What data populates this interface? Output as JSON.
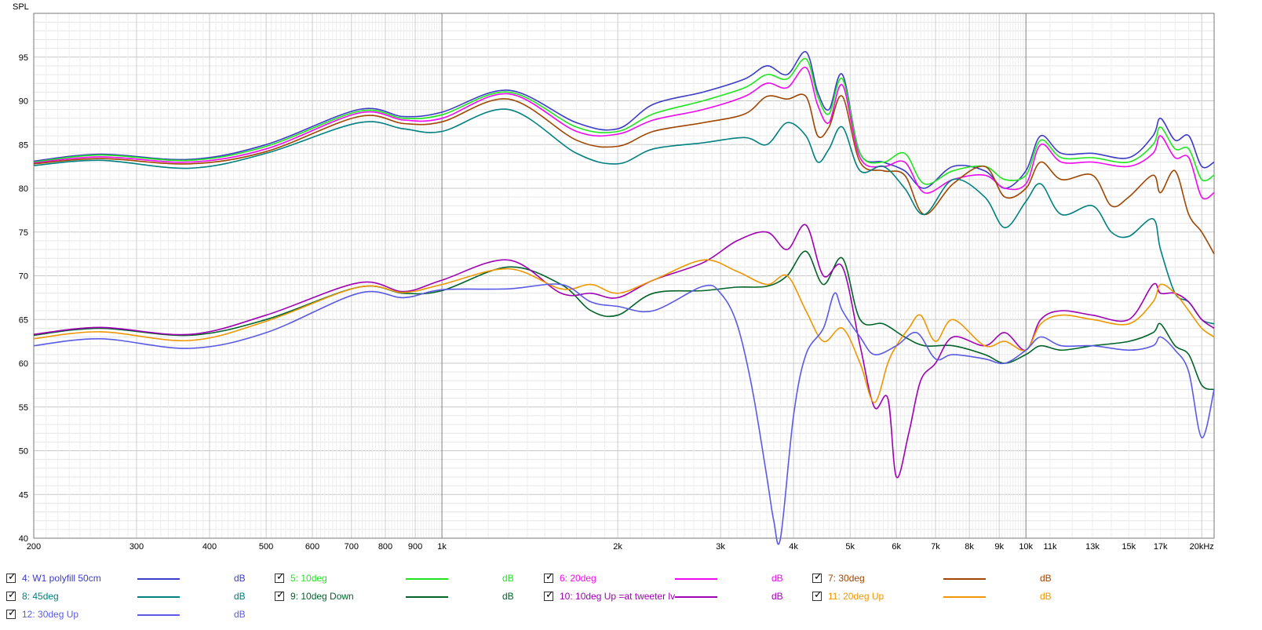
{
  "chart_data": {
    "type": "line",
    "ylabel": "SPL",
    "x_scale": "log",
    "xlim": [
      200,
      21000
    ],
    "ylim": [
      40,
      100
    ],
    "y_ticks": [
      40,
      45,
      50,
      55,
      60,
      65,
      70,
      75,
      80,
      85,
      90,
      95
    ],
    "x_ticks": [
      {
        "value": 200,
        "label": "200"
      },
      {
        "value": 300,
        "label": "300"
      },
      {
        "value": 400,
        "label": "400"
      },
      {
        "value": 500,
        "label": "500"
      },
      {
        "value": 600,
        "label": "600"
      },
      {
        "value": 700,
        "label": "700"
      },
      {
        "value": 800,
        "label": "800"
      },
      {
        "value": 900,
        "label": "900"
      },
      {
        "value": 1000,
        "label": "1k"
      },
      {
        "value": 2000,
        "label": "2k"
      },
      {
        "value": 3000,
        "label": "3k"
      },
      {
        "value": 4000,
        "label": "4k"
      },
      {
        "value": 5000,
        "label": "5k"
      },
      {
        "value": 6000,
        "label": "6k"
      },
      {
        "value": 7000,
        "label": "7k"
      },
      {
        "value": 8000,
        "label": "8k"
      },
      {
        "value": 9000,
        "label": "9k"
      },
      {
        "value": 10000,
        "label": "10k"
      },
      {
        "value": 11000,
        "label": "11k"
      },
      {
        "value": 13000,
        "label": "13k"
      },
      {
        "value": 15000,
        "label": "15k"
      },
      {
        "value": 17000,
        "label": "17k"
      },
      {
        "value": 20000,
        "label": "20kHz"
      }
    ],
    "grid": true,
    "legend_position": "bottom",
    "series": [
      {
        "name": "4: W1 polyfill 50cm",
        "unit": "dB",
        "color": "#3c3cc8",
        "x": [
          200,
          260,
          370,
          500,
          720,
          860,
          1000,
          1300,
          1700,
          2000,
          2300,
          2800,
          3300,
          3600,
          3900,
          4200,
          4400,
          4600,
          4850,
          5200,
          5700,
          6200,
          6700,
          7500,
          8500,
          9200,
          10000,
          10600,
          11500,
          13000,
          15000,
          16500,
          17000,
          18000,
          19000,
          20000,
          21000
        ],
        "y": [
          83.1,
          83.9,
          83.3,
          85,
          89,
          88.2,
          88.7,
          91.2,
          87.5,
          86.8,
          89.6,
          91,
          92.5,
          94,
          93,
          95.6,
          91,
          89,
          93,
          84,
          83,
          82,
          80,
          82.5,
          82,
          80,
          82,
          86,
          84,
          84,
          83.5,
          86,
          88,
          85.5,
          86,
          82.5,
          83
        ]
      },
      {
        "name": "5: 10deg",
        "unit": "dB",
        "color": "#1ee61e",
        "x": [
          200,
          260,
          370,
          500,
          720,
          860,
          1000,
          1300,
          1700,
          2000,
          2300,
          2800,
          3300,
          3600,
          3900,
          4200,
          4400,
          4600,
          4850,
          5200,
          5700,
          6200,
          6700,
          7500,
          8500,
          9200,
          10000,
          10600,
          11500,
          13000,
          15000,
          16500,
          17000,
          18000,
          19000,
          20000,
          21000
        ],
        "y": [
          83.0,
          83.8,
          83.2,
          84.8,
          88.8,
          88.0,
          88.4,
          91.0,
          87.0,
          86.5,
          88.5,
          90,
          91.5,
          93,
          92.5,
          94.8,
          90.5,
          88.5,
          92.5,
          84,
          83,
          84,
          80.5,
          82,
          82.5,
          81,
          81.5,
          85.5,
          83.5,
          83.5,
          83,
          85,
          87,
          84.5,
          84.5,
          81,
          81.5
        ]
      },
      {
        "name": "6: 20deg",
        "unit": "dB",
        "color": "#f00af0",
        "x": [
          200,
          260,
          370,
          500,
          720,
          860,
          1000,
          1300,
          1700,
          2000,
          2300,
          2800,
          3300,
          3600,
          3900,
          4200,
          4400,
          4600,
          4850,
          5200,
          5700,
          6200,
          6700,
          7500,
          8500,
          9200,
          10000,
          10600,
          11500,
          13000,
          15000,
          16500,
          17000,
          18000,
          19000,
          20000,
          21000
        ],
        "y": [
          82.9,
          83.6,
          83.0,
          84.5,
          88.6,
          87.8,
          88.0,
          90.8,
          86.5,
          86.2,
          87.8,
          89,
          90.5,
          92,
          91.5,
          93.8,
          89.5,
          87.5,
          91.8,
          83.5,
          82.5,
          83,
          79.5,
          81,
          81.5,
          80,
          80.5,
          85,
          83,
          83,
          82.5,
          84,
          86,
          83.5,
          83.5,
          79,
          79.5
        ]
      },
      {
        "name": "7: 30deg",
        "unit": "dB",
        "color": "#a04600",
        "x": [
          200,
          260,
          370,
          500,
          720,
          860,
          1000,
          1300,
          1700,
          2000,
          2300,
          2800,
          3300,
          3600,
          3900,
          4200,
          4400,
          4600,
          4850,
          5200,
          5700,
          6200,
          6700,
          7500,
          8500,
          9200,
          10000,
          10600,
          11500,
          13000,
          14000,
          15000,
          16500,
          17000,
          18000,
          19000,
          20000,
          21000
        ],
        "y": [
          82.8,
          83.4,
          82.8,
          84.2,
          88.2,
          87.4,
          87.6,
          90.2,
          85.5,
          84.8,
          86.5,
          87.5,
          88.5,
          90.5,
          90.2,
          90.5,
          86,
          87,
          90.5,
          83,
          82,
          81.5,
          77,
          80.5,
          82.5,
          79,
          80,
          83,
          81,
          81.5,
          78,
          79,
          81.5,
          79.5,
          82,
          77,
          75,
          72.5
        ]
      },
      {
        "name": "8: 45deg",
        "unit": "dB",
        "color": "#008080",
        "x": [
          200,
          260,
          370,
          500,
          720,
          860,
          1000,
          1300,
          1700,
          2000,
          2300,
          2800,
          3300,
          3600,
          3900,
          4200,
          4400,
          4600,
          4850,
          5200,
          5700,
          6200,
          6700,
          7500,
          8500,
          9200,
          10000,
          10600,
          11500,
          13000,
          14000,
          15000,
          16500,
          17000,
          18000,
          19000,
          20000,
          21000
        ],
        "y": [
          82.6,
          83.2,
          82.3,
          84,
          87.5,
          86.8,
          86.5,
          89,
          84,
          82.8,
          84.5,
          85.2,
          85.8,
          85,
          87.5,
          86,
          83,
          84.5,
          87,
          82,
          82.5,
          80,
          77,
          81,
          79,
          75.5,
          78.5,
          80.5,
          77,
          78,
          75,
          74.5,
          76.5,
          73,
          68,
          67,
          65,
          64.5
        ]
      },
      {
        "name": "9: 10deg Down",
        "unit": "dB",
        "color": "#006428",
        "x": [
          200,
          260,
          370,
          500,
          720,
          860,
          1000,
          1300,
          1600,
          1800,
          2000,
          2300,
          2800,
          3200,
          3600,
          3900,
          4200,
          4500,
          4850,
          5200,
          5700,
          6200,
          6700,
          7500,
          8500,
          9200,
          10000,
          10600,
          11500,
          13000,
          15000,
          16500,
          17000,
          18000,
          19000,
          20000,
          21000
        ],
        "y": [
          63.2,
          64,
          63.2,
          65,
          68.7,
          68,
          68.3,
          71,
          69,
          66,
          65.5,
          68,
          68.3,
          68.7,
          68.8,
          70,
          72.8,
          69,
          72,
          65,
          64.5,
          63,
          62,
          62,
          61,
          60,
          61,
          62,
          61.5,
          62,
          62.5,
          63.5,
          64.5,
          62,
          61,
          57.5,
          57
        ]
      },
      {
        "name": "10: 10deg Up =at tweeter lv",
        "unit": "dB",
        "color": "#a000b4",
        "x": [
          200,
          260,
          370,
          500,
          720,
          860,
          1000,
          1300,
          1600,
          1800,
          2000,
          2300,
          2800,
          3200,
          3600,
          3900,
          4200,
          4500,
          4850,
          5200,
          5500,
          5800,
          6000,
          6300,
          6600,
          7000,
          7500,
          8500,
          9200,
          10000,
          10600,
          11500,
          13000,
          15000,
          16500,
          17000,
          18000,
          19000,
          20000,
          21000
        ],
        "y": [
          63.3,
          64.1,
          63.3,
          65.5,
          69.2,
          68.2,
          69.5,
          71.8,
          68,
          68,
          67.5,
          69.5,
          71.5,
          74,
          75,
          73,
          75.8,
          70,
          71,
          62,
          55,
          56,
          47,
          52,
          58,
          60,
          63,
          62,
          63.5,
          61.5,
          65,
          66,
          65.5,
          65,
          69,
          68,
          68,
          67,
          65,
          64
        ]
      },
      {
        "name": "11: 20deg Up",
        "unit": "dB",
        "color": "#f09600",
        "x": [
          200,
          260,
          370,
          500,
          720,
          860,
          1000,
          1300,
          1600,
          1800,
          2000,
          2300,
          2800,
          3200,
          3600,
          3900,
          4200,
          4500,
          4850,
          5200,
          5500,
          5800,
          6000,
          6300,
          6600,
          7000,
          7500,
          8500,
          9200,
          10000,
          10600,
          11500,
          13000,
          15000,
          16500,
          17000,
          18000,
          19000,
          20000,
          21000
        ],
        "y": [
          62.8,
          63.6,
          62.6,
          64.8,
          68.7,
          68.1,
          69,
          70.8,
          68.5,
          69,
          68,
          69.5,
          71.8,
          70.5,
          69,
          70,
          66,
          62.5,
          64,
          60,
          55.5,
          60,
          62,
          64,
          65.5,
          62.5,
          65,
          62,
          62.5,
          61.5,
          64.5,
          65.5,
          65,
          64.5,
          67,
          69,
          68,
          66,
          64,
          63
        ]
      },
      {
        "name": "12: 30deg Up",
        "unit": "dB",
        "color": "#5a5ae6",
        "x": [
          200,
          260,
          370,
          500,
          720,
          860,
          1000,
          1300,
          1600,
          1800,
          2000,
          2300,
          2800,
          3000,
          3200,
          3400,
          3600,
          3700,
          3800,
          4000,
          4200,
          4500,
          4700,
          4850,
          5200,
          5500,
          6000,
          6500,
          7000,
          7500,
          8500,
          9200,
          10000,
          10600,
          11500,
          13000,
          15000,
          16500,
          17000,
          18000,
          19000,
          20000,
          21000
        ],
        "y": [
          62,
          62.8,
          61.7,
          63.5,
          68,
          67.5,
          68.4,
          68.5,
          69,
          67,
          66.5,
          66,
          68.8,
          68,
          64.5,
          57,
          47,
          42,
          40,
          54,
          61,
          64,
          68,
          66,
          63,
          61,
          62,
          63.5,
          60.5,
          61,
          60.5,
          60,
          61.5,
          63,
          62,
          62,
          61.5,
          62,
          63,
          61.5,
          59,
          51.5,
          57
        ]
      }
    ]
  }
}
